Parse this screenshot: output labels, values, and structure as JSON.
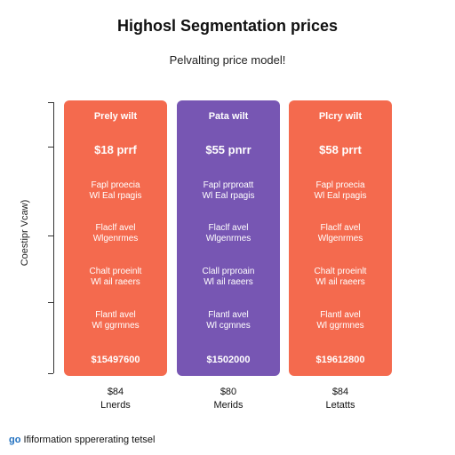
{
  "title": "Highosl Segmentation prices",
  "subtitle": "Pelvalting price model!",
  "colors": {
    "coral": "#f46a4e",
    "purple": "#7756b3",
    "link": "#1f6fbf"
  },
  "chart_data": {
    "type": "bar",
    "title": "Highosl Segmentation prices",
    "subtitle": "Pelvalting price model!",
    "ylabel": "Coestipr Vcaw)",
    "xlabel": "",
    "categories": [
      "Lnerds",
      "Merids",
      "Letatts"
    ],
    "values": [
      1,
      1,
      1
    ],
    "grid": false,
    "plans": [
      {
        "name": "Prely wilt",
        "price": "$18 prrf",
        "color": "#f46a4e",
        "features": [
          "Fapl proecia\nWl Eal rpagis",
          "Flaclf avel\nWlgenrmes",
          "Chalt proeinlt\nWl ail raeers",
          "Flantl avel\nWl ggrmnes"
        ],
        "total": "$15497600",
        "below_price": "$84",
        "below_name": "Lnerds"
      },
      {
        "name": "Pata wilt",
        "price": "$55 pnrr",
        "color": "#7756b3",
        "features": [
          "Fapl prproatt\nWl Eal rpagis",
          "Flaclf avel\nWlgenrmes",
          "Clall prproain\nWl ail raeers",
          "Flantl avel\nWl cgmnes"
        ],
        "total": "$1502000",
        "below_price": "$80",
        "below_name": "Merids"
      },
      {
        "name": "Plcry wilt",
        "price": "$58 prrt",
        "color": "#f46a4e",
        "features": [
          "Fapl proecia\nWl Eal rpagis",
          "Flaclf avel\nWlgenrmes",
          "Chalt proeinlt\nWl ail raeers",
          "Flantl avel\nWl ggrmnes"
        ],
        "total": "$19612800",
        "below_price": "$84",
        "below_name": "Letatts"
      }
    ]
  },
  "footnote": {
    "prefix": "go",
    "text": " Ififormation sppererating tetsel"
  }
}
